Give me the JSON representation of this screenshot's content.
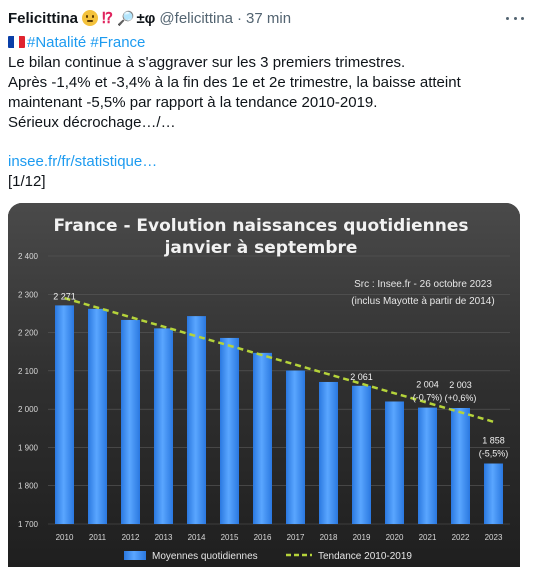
{
  "tweet": {
    "author_name": "Felicittina",
    "author_extra": "±φ",
    "handle": "@felicittina",
    "separator": "·",
    "time": "37 min",
    "more_label": "More",
    "hashtags": [
      "#Natalité",
      "#France"
    ],
    "lines": [
      "Le bilan continue à s'aggraver sur les 3 premiers trimestres.",
      "Après -1,4% et -3,4% à la fin des 1e et 2e trimestre, la baisse atteint",
      "maintenant -5,5% par rapport à la tendance 2010-2019.",
      "Sérieux décrochage…/…"
    ],
    "link": "insee.fr/fr/statistique…",
    "thread_counter": "[1/12]"
  },
  "colors": {
    "accent": "#1d9bf0",
    "chart_background": "#2b2b2b",
    "bar_fill": "#3b8df0",
    "trend_line": "#b5d33a"
  },
  "chart_data": {
    "type": "bar",
    "title_line1": "France - Evolution naissances quotidiennes",
    "title_line2": "janvier à septembre",
    "source_line1": "Src : Insee.fr - 26 octobre 2023",
    "source_line2": "(inclus Mayotte à partir de 2014)",
    "categories": [
      "2010",
      "2011",
      "2012",
      "2013",
      "2014",
      "2015",
      "2016",
      "2017",
      "2018",
      "2019",
      "2020",
      "2021",
      "2022",
      "2023"
    ],
    "values": [
      2271,
      2262,
      2233,
      2211,
      2243,
      2186,
      2147,
      2101,
      2071,
      2061,
      2020,
      2004,
      2003,
      1858
    ],
    "trend": {
      "start": 2290,
      "end": 1967
    },
    "ylim": [
      1700,
      2400
    ],
    "yticks": [
      "2 400",
      "2 300",
      "2 200",
      "2 100",
      "2 000",
      "1 900",
      "1 800",
      "1 700"
    ],
    "ytick_values": [
      2400,
      2300,
      2200,
      2100,
      2000,
      1900,
      1800,
      1700
    ],
    "data_labels": [
      {
        "index": 0,
        "text": "2 271",
        "sub": ""
      },
      {
        "index": 9,
        "text": "2 061",
        "sub": ""
      },
      {
        "index": 11,
        "text": "2 004",
        "sub": "(-0,7%)"
      },
      {
        "index": 12,
        "text": "2 003",
        "sub": "(+0,6%)"
      },
      {
        "index": 13,
        "text": "1 858",
        "sub": "(-5,5%)"
      }
    ],
    "legend": [
      "Moyennes quotidiennes",
      "Tendance 2010-2019"
    ],
    "legend_position": "bottom",
    "grid": true
  }
}
